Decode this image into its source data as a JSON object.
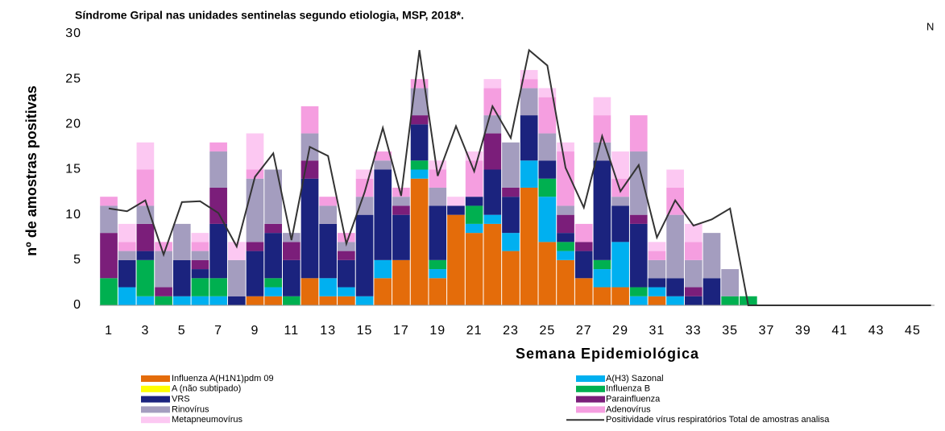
{
  "chart_data": {
    "type": "bar",
    "stacked": true,
    "title": "Síndrome Gripal nas unidades sentinelas segundo etiologia, MSP, 2018*.",
    "corner_label": "N",
    "y_label": "nº de amostras positivas",
    "x_label": "Semana Epidemiológica",
    "categories": [
      1,
      null,
      3,
      null,
      5,
      null,
      7,
      null,
      9,
      null,
      11,
      null,
      13,
      null,
      15,
      null,
      17,
      null,
      19,
      null,
      21,
      null,
      23,
      null,
      25,
      null,
      27,
      null,
      29,
      null,
      31,
      null,
      33,
      null,
      35,
      null,
      37,
      null,
      39,
      null,
      41,
      null,
      43,
      null,
      45,
      null
    ],
    "ylim": [
      0,
      30
    ],
    "yticks": [
      0,
      5,
      10,
      15,
      20,
      25,
      30
    ],
    "grid": false,
    "series": [
      {
        "name": "Influenza A(H1N1)pdm 09",
        "color": "#e46c0a",
        "values": [
          0,
          0,
          0,
          0,
          0,
          0,
          0,
          0,
          1,
          1,
          0,
          3,
          1,
          1,
          0,
          3,
          5,
          14,
          3,
          10,
          8,
          9,
          6,
          13,
          7,
          5,
          3,
          2,
          2,
          0,
          1,
          0,
          0,
          0,
          0,
          0,
          null,
          null,
          null,
          null,
          null,
          null,
          null,
          null,
          null,
          null
        ]
      },
      {
        "name": "A(H3) Sazonal",
        "color": "#00b0f0",
        "values": [
          0,
          2,
          1,
          0,
          1,
          1,
          1,
          0,
          0,
          1,
          0,
          0,
          2,
          1,
          1,
          2,
          0,
          1,
          1,
          0,
          1,
          1,
          2,
          3,
          5,
          1,
          0,
          2,
          5,
          1,
          1,
          1,
          0,
          0,
          0,
          0,
          null,
          null,
          null,
          null,
          null,
          null,
          null,
          null,
          null,
          null
        ]
      },
      {
        "name": "A (não subtipado)",
        "color": "#ffff00",
        "values": [
          0,
          0,
          0,
          0,
          0,
          0,
          0,
          0,
          0,
          0,
          0,
          0,
          0,
          0,
          0,
          0,
          0,
          0,
          0,
          0,
          0,
          0,
          0,
          0,
          0,
          0,
          0,
          0,
          0,
          0,
          0,
          0,
          0,
          0,
          0,
          0,
          null,
          null,
          null,
          null,
          null,
          null,
          null,
          null,
          null,
          null
        ]
      },
      {
        "name": "Influenza B",
        "color": "#00b050",
        "values": [
          3,
          0,
          4,
          1,
          0,
          2,
          2,
          0,
          0,
          1,
          1,
          0,
          0,
          0,
          0,
          0,
          0,
          1,
          1,
          0,
          2,
          0,
          0,
          0,
          2,
          1,
          0,
          1,
          0,
          1,
          0,
          0,
          0,
          0,
          1,
          1,
          null,
          null,
          null,
          null,
          null,
          null,
          null,
          null,
          null,
          null
        ]
      },
      {
        "name": "VRS",
        "color": "#1b237e",
        "values": [
          0,
          3,
          1,
          0,
          4,
          1,
          6,
          1,
          5,
          5,
          4,
          11,
          6,
          3,
          9,
          10,
          5,
          4,
          6,
          1,
          1,
          5,
          4,
          5,
          2,
          1,
          3,
          11,
          4,
          7,
          1,
          2,
          1,
          3,
          0,
          0,
          null,
          null,
          null,
          null,
          null,
          null,
          null,
          null,
          null,
          null
        ]
      },
      {
        "name": "Parainfluenza",
        "color": "#7b1e7a",
        "values": [
          5,
          0,
          3,
          1,
          0,
          1,
          4,
          0,
          1,
          1,
          2,
          2,
          0,
          1,
          0,
          0,
          1,
          1,
          0,
          0,
          0,
          4,
          1,
          0,
          0,
          2,
          1,
          0,
          0,
          1,
          0,
          0,
          1,
          0,
          0,
          0,
          null,
          null,
          null,
          null,
          null,
          null,
          null,
          null,
          null,
          null
        ]
      },
      {
        "name": "Rinovírus",
        "color": "#a49dbf",
        "values": [
          3,
          1,
          2,
          4,
          4,
          1,
          4,
          4,
          7,
          6,
          1,
          3,
          2,
          1,
          2,
          1,
          1,
          3,
          2,
          0,
          0,
          2,
          5,
          3,
          3,
          1,
          0,
          2,
          1,
          7,
          2,
          7,
          3,
          5,
          3,
          0,
          null,
          null,
          null,
          null,
          null,
          null,
          null,
          null,
          null,
          null
        ]
      },
      {
        "name": "Adenovírus",
        "color": "#f59ee0",
        "values": [
          1,
          1,
          4,
          1,
          0,
          1,
          1,
          0,
          1,
          0,
          0,
          3,
          1,
          1,
          2,
          1,
          1,
          1,
          2,
          0,
          4,
          3,
          0,
          1,
          4,
          6,
          2,
          3,
          2,
          4,
          1,
          3,
          2,
          0,
          0,
          0,
          null,
          null,
          null,
          null,
          null,
          null,
          null,
          null,
          null,
          null
        ]
      },
      {
        "name": "Metapneumovírus",
        "color": "#fcc8f2",
        "values": [
          0,
          2,
          3,
          0,
          0,
          1,
          0,
          2,
          4,
          0,
          0,
          0,
          0,
          0,
          1,
          0,
          0,
          0,
          1,
          1,
          1,
          1,
          0,
          1,
          1,
          1,
          0,
          2,
          3,
          0,
          1,
          2,
          2,
          0,
          0,
          0,
          null,
          null,
          null,
          null,
          null,
          null,
          null,
          null,
          null,
          null
        ]
      },
      {
        "name": "Positividade vírus respiratórios Total de amostras analisa",
        "type": "line",
        "color": "#333333",
        "values": [
          10.7,
          10.4,
          11.6,
          5.6,
          11.4,
          11.5,
          10.2,
          6.5,
          14.2,
          16.8,
          7.2,
          17.5,
          16.5,
          6.8,
          12.5,
          19.6,
          12.1,
          28.2,
          14.3,
          19.8,
          14.8,
          22,
          18.5,
          28.2,
          26.5,
          15.2,
          10.8,
          18.7,
          12.6,
          15.5,
          7.5,
          11.6,
          8.8,
          9.5,
          10.7,
          0,
          0,
          0,
          0,
          0,
          0,
          0,
          0,
          0,
          0,
          0
        ]
      }
    ]
  }
}
